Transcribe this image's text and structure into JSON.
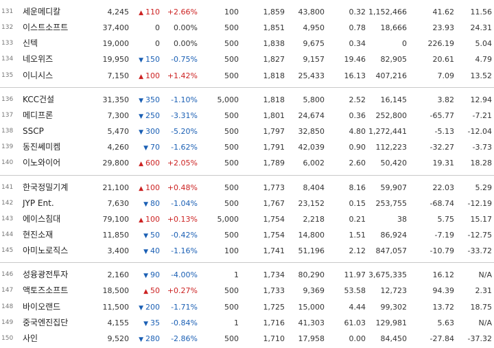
{
  "rows": [
    {
      "no": "131",
      "name": "세운메디칼",
      "price": "4,245",
      "dir": "up",
      "change": "110",
      "rate": "+2.66%",
      "face": "100",
      "mcap": "1,859",
      "shares": "43,800",
      "foreign": "0.32",
      "volume": "1,152,466",
      "per": "41.62",
      "roe": "11.56"
    },
    {
      "no": "132",
      "name": "이스트소프트",
      "price": "37,400",
      "dir": "flat",
      "change": "0",
      "rate": "0.00%",
      "face": "500",
      "mcap": "1,851",
      "shares": "4,950",
      "foreign": "0.78",
      "volume": "18,666",
      "per": "23.93",
      "roe": "24.31"
    },
    {
      "no": "133",
      "name": "신텍",
      "price": "19,000",
      "dir": "flat",
      "change": "0",
      "rate": "0.00%",
      "face": "500",
      "mcap": "1,838",
      "shares": "9,675",
      "foreign": "0.34",
      "volume": "0",
      "per": "226.19",
      "roe": "5.04"
    },
    {
      "no": "134",
      "name": "네오위즈",
      "price": "19,950",
      "dir": "down",
      "change": "150",
      "rate": "-0.75%",
      "face": "500",
      "mcap": "1,827",
      "shares": "9,157",
      "foreign": "19.46",
      "volume": "82,905",
      "per": "20.61",
      "roe": "4.79"
    },
    {
      "no": "135",
      "name": "이니시스",
      "price": "7,150",
      "dir": "up",
      "change": "100",
      "rate": "+1.42%",
      "face": "500",
      "mcap": "1,818",
      "shares": "25,433",
      "foreign": "16.13",
      "volume": "407,216",
      "per": "7.09",
      "roe": "13.52"
    },
    {
      "no": "136",
      "name": "KCC건설",
      "price": "31,350",
      "dir": "down",
      "change": "350",
      "rate": "-1.10%",
      "face": "5,000",
      "mcap": "1,818",
      "shares": "5,800",
      "foreign": "2.52",
      "volume": "16,145",
      "per": "3.82",
      "roe": "12.94"
    },
    {
      "no": "137",
      "name": "메디프론",
      "price": "7,300",
      "dir": "down",
      "change": "250",
      "rate": "-3.31%",
      "face": "500",
      "mcap": "1,801",
      "shares": "24,674",
      "foreign": "0.36",
      "volume": "252,800",
      "per": "-65.77",
      "roe": "-7.21"
    },
    {
      "no": "138",
      "name": "SSCP",
      "price": "5,470",
      "dir": "down",
      "change": "300",
      "rate": "-5.20%",
      "face": "500",
      "mcap": "1,797",
      "shares": "32,850",
      "foreign": "4.80",
      "volume": "1,272,441",
      "per": "-5.13",
      "roe": "-12.04"
    },
    {
      "no": "139",
      "name": "동진쎄미켐",
      "price": "4,260",
      "dir": "down",
      "change": "70",
      "rate": "-1.62%",
      "face": "500",
      "mcap": "1,791",
      "shares": "42,039",
      "foreign": "0.90",
      "volume": "112,223",
      "per": "-32.27",
      "roe": "-3.73"
    },
    {
      "no": "140",
      "name": "이노와이어",
      "price": "29,800",
      "dir": "up",
      "change": "600",
      "rate": "+2.05%",
      "face": "500",
      "mcap": "1,789",
      "shares": "6,002",
      "foreign": "2.60",
      "volume": "50,420",
      "per": "19.31",
      "roe": "18.28"
    },
    {
      "no": "141",
      "name": "한국정밀기계",
      "price": "21,100",
      "dir": "up",
      "change": "100",
      "rate": "+0.48%",
      "face": "500",
      "mcap": "1,773",
      "shares": "8,404",
      "foreign": "8.16",
      "volume": "59,907",
      "per": "22.03",
      "roe": "5.29"
    },
    {
      "no": "142",
      "name": "JYP Ent.",
      "price": "7,630",
      "dir": "down",
      "change": "80",
      "rate": "-1.04%",
      "face": "500",
      "mcap": "1,767",
      "shares": "23,152",
      "foreign": "0.15",
      "volume": "253,755",
      "per": "-68.74",
      "roe": "-12.19"
    },
    {
      "no": "143",
      "name": "에이스침대",
      "price": "79,100",
      "dir": "up",
      "change": "100",
      "rate": "+0.13%",
      "face": "5,000",
      "mcap": "1,754",
      "shares": "2,218",
      "foreign": "0.21",
      "volume": "38",
      "per": "5.75",
      "roe": "15.17"
    },
    {
      "no": "144",
      "name": "현진소재",
      "price": "11,850",
      "dir": "down",
      "change": "50",
      "rate": "-0.42%",
      "face": "500",
      "mcap": "1,754",
      "shares": "14,800",
      "foreign": "1.51",
      "volume": "86,924",
      "per": "-7.19",
      "roe": "-12.75"
    },
    {
      "no": "145",
      "name": "아미노로직스",
      "price": "3,400",
      "dir": "down",
      "change": "40",
      "rate": "-1.16%",
      "face": "100",
      "mcap": "1,741",
      "shares": "51,196",
      "foreign": "2.12",
      "volume": "847,057",
      "per": "-10.79",
      "roe": "-33.72"
    },
    {
      "no": "146",
      "name": "성융광전투자",
      "price": "2,160",
      "dir": "down",
      "change": "90",
      "rate": "-4.00%",
      "face": "1",
      "mcap": "1,734",
      "shares": "80,290",
      "foreign": "11.97",
      "volume": "3,675,335",
      "per": "16.12",
      "roe": "N/A"
    },
    {
      "no": "147",
      "name": "액토즈소프트",
      "price": "18,500",
      "dir": "up",
      "change": "50",
      "rate": "+0.27%",
      "face": "500",
      "mcap": "1,733",
      "shares": "9,369",
      "foreign": "53.58",
      "volume": "12,723",
      "per": "94.39",
      "roe": "2.31"
    },
    {
      "no": "148",
      "name": "바이오랜드",
      "price": "11,500",
      "dir": "down",
      "change": "200",
      "rate": "-1.71%",
      "face": "500",
      "mcap": "1,725",
      "shares": "15,000",
      "foreign": "4.44",
      "volume": "99,302",
      "per": "13.72",
      "roe": "18.75"
    },
    {
      "no": "149",
      "name": "중국엔진집단",
      "price": "4,155",
      "dir": "down",
      "change": "35",
      "rate": "-0.84%",
      "face": "1",
      "mcap": "1,716",
      "shares": "41,303",
      "foreign": "61.03",
      "volume": "129,981",
      "per": "5.63",
      "roe": "N/A"
    },
    {
      "no": "150",
      "name": "사인",
      "price": "9,520",
      "dir": "down",
      "change": "280",
      "rate": "-2.86%",
      "face": "500",
      "mcap": "1,710",
      "shares": "17,958",
      "foreign": "0.00",
      "volume": "84,450",
      "per": "-27.84",
      "roe": "-37.32"
    }
  ],
  "arrows": {
    "up": "▲",
    "down": "▼",
    "flat": ""
  },
  "colors": {
    "up": "#cc2222",
    "down": "#1a5fb4",
    "flat": "#333333",
    "separator": "#c8c8c8"
  }
}
